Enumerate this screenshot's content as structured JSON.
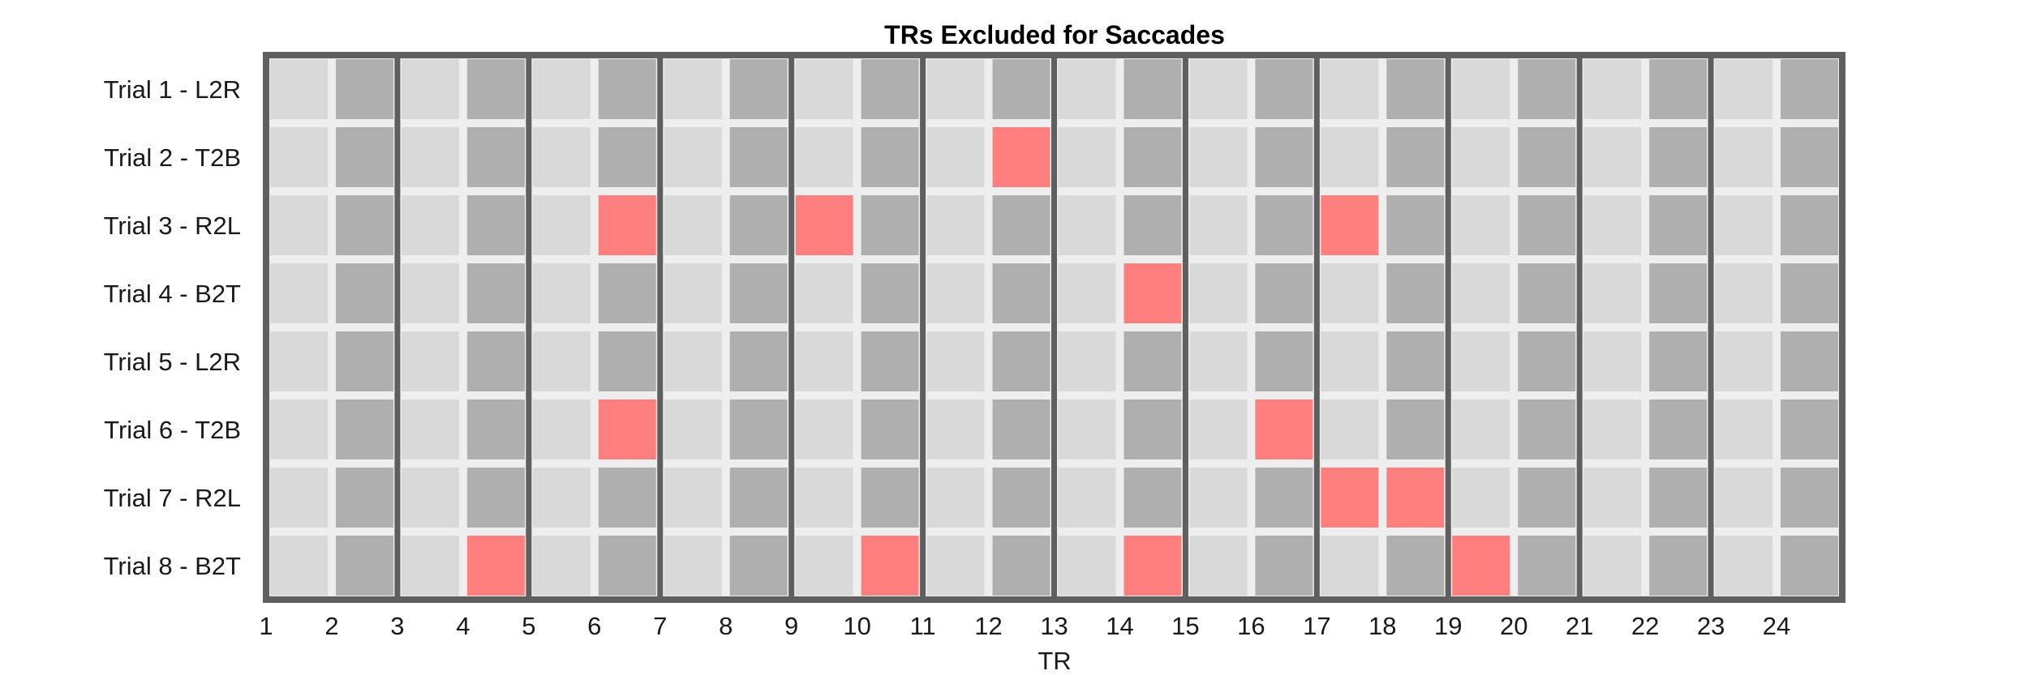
{
  "chart_data": {
    "type": "heatmap",
    "title": "TRs Excluded for Saccades",
    "xlabel": "TR",
    "ylabel": "",
    "x_ticks": [
      "1",
      "2",
      "3",
      "4",
      "5",
      "6",
      "7",
      "8",
      "9",
      "10",
      "11",
      "12",
      "13",
      "14",
      "15",
      "16",
      "17",
      "18",
      "19",
      "20",
      "21",
      "22",
      "23",
      "24"
    ],
    "rows": [
      "Trial 1 - L2R",
      "Trial 2 - T2B",
      "Trial 3 - R2L",
      "Trial 4 - B2T",
      "Trial 5 - L2R",
      "Trial 6 - T2B",
      "Trial 7 - R2L",
      "Trial 8 - B2T"
    ],
    "n_columns": 24,
    "excluded_trs": [
      [],
      [
        12
      ],
      [
        6,
        9,
        17
      ],
      [
        14
      ],
      [],
      [
        6,
        16
      ],
      [
        17,
        18
      ],
      [
        4,
        10,
        14,
        19
      ]
    ],
    "colors": {
      "odd_column_cell": "#d9d9d9",
      "even_column_cell": "#afafaf",
      "excluded_cell": "#ff7f7f",
      "cell_gap": "#eeeeee",
      "frame": "#5f5f5f"
    }
  }
}
